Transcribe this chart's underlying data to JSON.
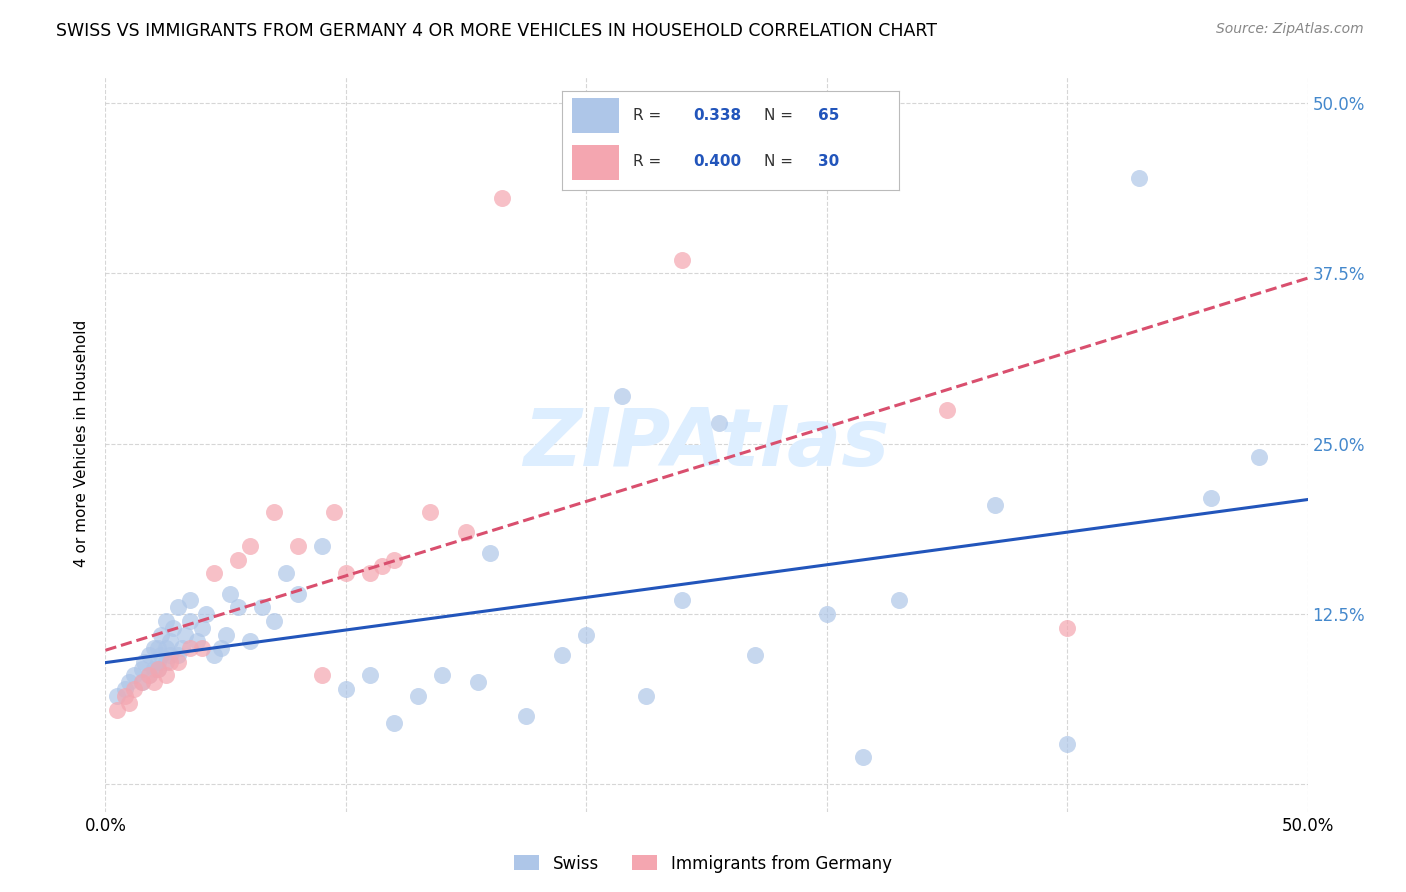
{
  "title": "SWISS VS IMMIGRANTS FROM GERMANY 4 OR MORE VEHICLES IN HOUSEHOLD CORRELATION CHART",
  "source": "Source: ZipAtlas.com",
  "ylabel": "4 or more Vehicles in Household",
  "xlim": [
    0.0,
    0.5
  ],
  "ylim": [
    -0.02,
    0.52
  ],
  "swiss_R": "0.338",
  "swiss_N": "65",
  "germany_R": "0.400",
  "germany_N": "30",
  "swiss_color": "#aec6e8",
  "germany_color": "#f4a6b0",
  "swiss_line_color": "#2255bb",
  "germany_line_color": "#d94f6e",
  "watermark_color": "#ddeeff",
  "swiss_x": [
    0.005,
    0.008,
    0.01,
    0.012,
    0.015,
    0.015,
    0.016,
    0.018,
    0.018,
    0.02,
    0.02,
    0.022,
    0.022,
    0.022,
    0.023,
    0.023,
    0.025,
    0.025,
    0.025,
    0.027,
    0.027,
    0.028,
    0.03,
    0.03,
    0.032,
    0.033,
    0.035,
    0.035,
    0.038,
    0.04,
    0.042,
    0.045,
    0.048,
    0.05,
    0.052,
    0.055,
    0.06,
    0.065,
    0.07,
    0.075,
    0.08,
    0.09,
    0.1,
    0.11,
    0.12,
    0.13,
    0.14,
    0.155,
    0.16,
    0.175,
    0.19,
    0.2,
    0.215,
    0.225,
    0.24,
    0.255,
    0.27,
    0.3,
    0.315,
    0.33,
    0.37,
    0.4,
    0.43,
    0.46,
    0.48
  ],
  "swiss_y": [
    0.065,
    0.07,
    0.075,
    0.08,
    0.075,
    0.085,
    0.09,
    0.08,
    0.095,
    0.085,
    0.1,
    0.085,
    0.09,
    0.1,
    0.095,
    0.11,
    0.09,
    0.1,
    0.12,
    0.095,
    0.105,
    0.115,
    0.095,
    0.13,
    0.1,
    0.11,
    0.12,
    0.135,
    0.105,
    0.115,
    0.125,
    0.095,
    0.1,
    0.11,
    0.14,
    0.13,
    0.105,
    0.13,
    0.12,
    0.155,
    0.14,
    0.175,
    0.07,
    0.08,
    0.045,
    0.065,
    0.08,
    0.075,
    0.17,
    0.05,
    0.095,
    0.11,
    0.285,
    0.065,
    0.135,
    0.265,
    0.095,
    0.125,
    0.02,
    0.135,
    0.205,
    0.03,
    0.445,
    0.21,
    0.24
  ],
  "germany_x": [
    0.005,
    0.008,
    0.01,
    0.012,
    0.015,
    0.018,
    0.02,
    0.022,
    0.025,
    0.027,
    0.03,
    0.035,
    0.04,
    0.045,
    0.055,
    0.06,
    0.07,
    0.08,
    0.09,
    0.095,
    0.1,
    0.11,
    0.115,
    0.12,
    0.135,
    0.15,
    0.165,
    0.24,
    0.35,
    0.4
  ],
  "germany_y": [
    0.055,
    0.065,
    0.06,
    0.07,
    0.075,
    0.08,
    0.075,
    0.085,
    0.08,
    0.09,
    0.09,
    0.1,
    0.1,
    0.155,
    0.165,
    0.175,
    0.2,
    0.175,
    0.08,
    0.2,
    0.155,
    0.155,
    0.16,
    0.165,
    0.2,
    0.185,
    0.43,
    0.385,
    0.275,
    0.115
  ]
}
